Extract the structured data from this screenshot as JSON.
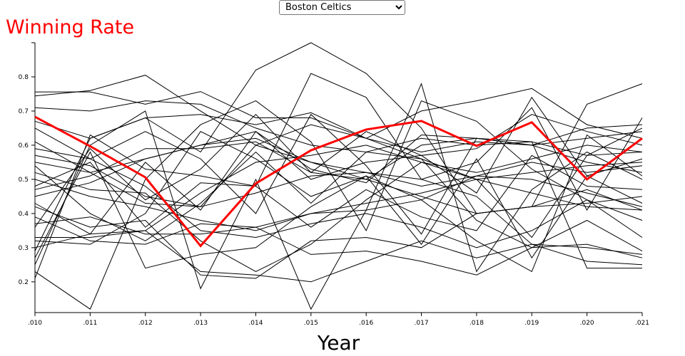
{
  "controls": {
    "team_options": [
      "Boston Celtics"
    ],
    "selected_team": "Boston Celtics"
  },
  "colors": {
    "highlight": "#ff0000",
    "background_series": "#000000",
    "title": "#ff0000"
  },
  "chart_data": {
    "type": "line",
    "title": "Winning Rate",
    "xlabel": "Year",
    "ylabel": "",
    "categories": [
      ".010",
      ".011",
      ".012",
      ".013",
      ".014",
      ".015",
      ".016",
      ".017",
      ".018",
      ".019",
      ".020",
      ".021"
    ],
    "ylim": [
      0.11,
      0.9
    ],
    "yticks": [
      0.2,
      0.3,
      0.4,
      0.5,
      0.6,
      0.7,
      0.8
    ],
    "grid": false,
    "legend": "none",
    "highlight_series": "Boston Celtics",
    "series": [
      {
        "name": "Boston Celtics",
        "values": [
          0.683,
          0.597,
          0.506,
          0.305,
          0.488,
          0.585,
          0.646,
          0.671,
          0.598,
          0.667,
          0.5,
          0.62
        ]
      },
      {
        "values": [
          0.756,
          0.756,
          0.72,
          0.757,
          0.68,
          0.68,
          0.62,
          0.56,
          0.5,
          0.46,
          0.42,
          0.41
        ]
      },
      {
        "values": [
          0.744,
          0.76,
          0.805,
          0.7,
          0.6,
          0.55,
          0.5,
          0.45,
          0.4,
          0.42,
          0.43,
          0.45
        ]
      },
      {
        "values": [
          0.71,
          0.7,
          0.73,
          0.72,
          0.65,
          0.6,
          0.58,
          0.62,
          0.6,
          0.61,
          0.57,
          0.65
        ]
      },
      {
        "values": [
          0.67,
          0.62,
          0.68,
          0.69,
          0.66,
          0.695,
          0.62,
          0.7,
          0.73,
          0.766,
          0.66,
          0.62
        ]
      },
      {
        "values": [
          0.61,
          0.52,
          0.56,
          0.6,
          0.62,
          0.55,
          0.52,
          0.48,
          0.51,
          0.5,
          0.46,
          0.42
        ]
      },
      {
        "values": [
          0.59,
          0.56,
          0.48,
          0.35,
          0.33,
          0.37,
          0.4,
          0.36,
          0.3,
          0.35,
          0.44,
          0.38
        ]
      },
      {
        "values": [
          0.57,
          0.54,
          0.45,
          0.42,
          0.46,
          0.51,
          0.52,
          0.5,
          0.45,
          0.31,
          0.26,
          0.25
        ]
      },
      {
        "values": [
          0.55,
          0.52,
          0.43,
          0.42,
          0.6,
          0.66,
          0.62,
          0.58,
          0.61,
          0.6,
          0.55,
          0.52
        ]
      },
      {
        "values": [
          0.52,
          0.47,
          0.46,
          0.32,
          0.23,
          0.31,
          0.44,
          0.55,
          0.52,
          0.56,
          0.6,
          0.58
        ]
      },
      {
        "values": [
          0.5,
          0.45,
          0.42,
          0.38,
          0.35,
          0.4,
          0.43,
          0.46,
          0.5,
          0.52,
          0.54,
          0.55
        ]
      },
      {
        "values": [
          0.47,
          0.51,
          0.59,
          0.59,
          0.61,
          0.52,
          0.5,
          0.6,
          0.62,
          0.6,
          0.62,
          0.64
        ]
      },
      {
        "values": [
          0.45,
          0.49,
          0.56,
          0.6,
          0.64,
          0.53,
          0.49,
          0.63,
          0.62,
          0.6,
          0.65,
          0.66
        ]
      },
      {
        "values": [
          0.43,
          0.34,
          0.55,
          0.41,
          0.64,
          0.5,
          0.55,
          0.57,
          0.46,
          0.74,
          0.51,
          0.43
        ]
      },
      {
        "values": [
          0.42,
          0.36,
          0.38,
          0.22,
          0.21,
          0.32,
          0.33,
          0.3,
          0.4,
          0.42,
          0.47,
          0.41
        ]
      },
      {
        "values": [
          0.39,
          0.32,
          0.31,
          0.37,
          0.36,
          0.4,
          0.41,
          0.44,
          0.51,
          0.55,
          0.52,
          0.54
        ]
      },
      {
        "values": [
          0.37,
          0.39,
          0.34,
          0.34,
          0.36,
          0.28,
          0.29,
          0.26,
          0.22,
          0.3,
          0.31,
          0.27
        ]
      },
      {
        "values": [
          0.33,
          0.33,
          0.35,
          0.46,
          0.55,
          0.57,
          0.6,
          0.55,
          0.5,
          0.33,
          0.57,
          0.58
        ]
      },
      {
        "values": [
          0.3,
          0.34,
          0.35,
          0.23,
          0.22,
          0.2,
          0.26,
          0.32,
          0.27,
          0.31,
          0.3,
          0.28
        ]
      },
      {
        "values": [
          0.29,
          0.62,
          0.68,
          0.58,
          0.82,
          0.9,
          0.81,
          0.65,
          0.4,
          0.42,
          0.72,
          0.78
        ]
      },
      {
        "values": [
          0.27,
          0.58,
          0.24,
          0.28,
          0.3,
          0.42,
          0.51,
          0.44,
          0.32,
          0.23,
          0.63,
          0.51
        ]
      },
      {
        "values": [
          0.25,
          0.6,
          0.7,
          0.18,
          0.5,
          0.12,
          0.41,
          0.78,
          0.23,
          0.47,
          0.58,
          0.5
        ]
      },
      {
        "values": [
          0.23,
          0.12,
          0.5,
          0.66,
          0.73,
          0.61,
          0.35,
          0.73,
          0.67,
          0.53,
          0.44,
          0.33
        ]
      },
      {
        "values": [
          0.21,
          0.63,
          0.53,
          0.51,
          0.48,
          0.81,
          0.74,
          0.5,
          0.55,
          0.71,
          0.41,
          0.68
        ]
      },
      {
        "values": [
          0.65,
          0.56,
          0.64,
          0.56,
          0.4,
          0.69,
          0.54,
          0.34,
          0.62,
          0.61,
          0.24,
          0.24
        ]
      },
      {
        "values": [
          0.54,
          0.4,
          0.32,
          0.43,
          0.58,
          0.43,
          0.58,
          0.56,
          0.38,
          0.3,
          0.38,
          0.29
        ]
      },
      {
        "values": [
          0.48,
          0.55,
          0.36,
          0.49,
          0.48,
          0.36,
          0.47,
          0.39,
          0.35,
          0.57,
          0.48,
          0.47
        ]
      },
      {
        "values": [
          0.36,
          0.59,
          0.44,
          0.53,
          0.69,
          0.52,
          0.64,
          0.57,
          0.59,
          0.69,
          0.64,
          0.6
        ]
      },
      {
        "values": [
          0.32,
          0.31,
          0.4,
          0.64,
          0.56,
          0.45,
          0.51,
          0.31,
          0.56,
          0.27,
          0.51,
          0.56
        ]
      }
    ]
  }
}
